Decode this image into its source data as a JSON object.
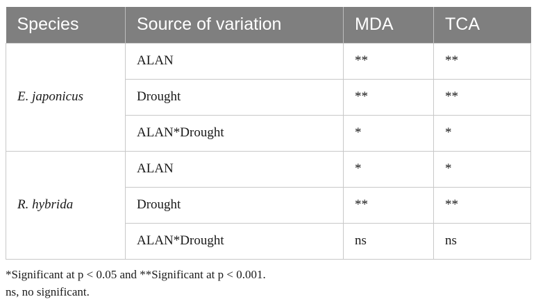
{
  "table": {
    "headers": [
      "Species",
      "Source of variation",
      "MDA",
      "TCA"
    ],
    "groups": [
      {
        "species": "E. japonicus",
        "rows": [
          {
            "source": "ALAN",
            "mda": "**",
            "tca": "**"
          },
          {
            "source": "Drought",
            "mda": "**",
            "tca": "**"
          },
          {
            "source": "ALAN*Drought",
            "mda": "*",
            "tca": "*"
          }
        ]
      },
      {
        "species": "R. hybrida",
        "rows": [
          {
            "source": "ALAN",
            "mda": "*",
            "tca": "*"
          },
          {
            "source": "Drought",
            "mda": "**",
            "tca": "**"
          },
          {
            "source": "ALAN*Drought",
            "mda": "ns",
            "tca": "ns"
          }
        ]
      }
    ]
  },
  "footnotes": [
    "*Significant at p < 0.05 and **Significant at p < 0.001.",
    "ns, no significant."
  ]
}
